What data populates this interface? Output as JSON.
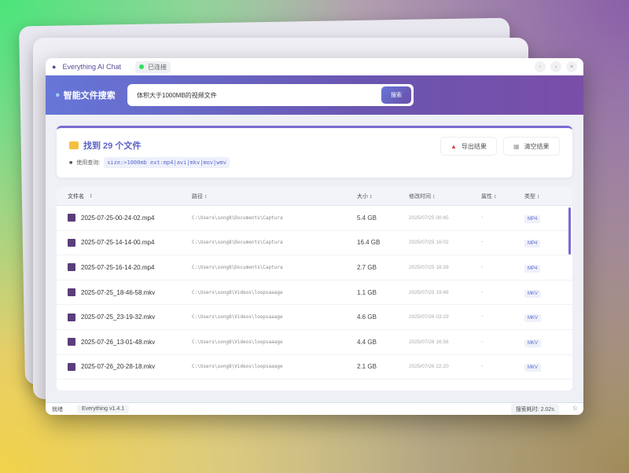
{
  "window": {
    "title": "Everything AI Chat",
    "connection": "已连接",
    "controls": [
      "-",
      "▫",
      "×"
    ]
  },
  "header": {
    "title": "智能文件搜索",
    "query": "体积大于1000MB的视频文件",
    "search_button": "搜索"
  },
  "summary": {
    "found": "找到 29 个文件",
    "query_label": "使用查询:",
    "query_code": "size:>1000mb ext:mp4|avi|mkv|mov|wmv",
    "export": "导出结果",
    "clear": "清空结果"
  },
  "table": {
    "headers": [
      "文件名",
      "路径",
      "大小",
      "修改时间",
      "属性",
      "类型"
    ],
    "rows": [
      {
        "name": "2025-07-25-00-24-02.mp4",
        "path": "C:\\Users\\song8\\Documents\\Captura",
        "size": "5.4 GB",
        "modified": "2025/07/25 00:45",
        "attr": "-",
        "type": "MP4"
      },
      {
        "name": "2025-07-25-14-14-00.mp4",
        "path": "C:\\Users\\song8\\Documents\\Captura",
        "size": "16.4 GB",
        "modified": "2025/07/25 16:02",
        "attr": "-",
        "type": "MP4"
      },
      {
        "name": "2025-07-25-16-14-20.mp4",
        "path": "C:\\Users\\song8\\Documents\\Captura",
        "size": "2.7 GB",
        "modified": "2025/07/25 18:39",
        "attr": "-",
        "type": "MP4"
      },
      {
        "name": "2025-07-25_18-46-58.mkv",
        "path": "C:\\Users\\song8\\Videos\\loopsaaage",
        "size": "1.1 GB",
        "modified": "2025/07/25 19:46",
        "attr": "-",
        "type": "MKV"
      },
      {
        "name": "2025-07-25_23-19-32.mkv",
        "path": "C:\\Users\\song8\\Videos\\loopsaaage",
        "size": "4.6 GB",
        "modified": "2025/07/26 03:29",
        "attr": "-",
        "type": "MKV"
      },
      {
        "name": "2025-07-26_13-01-48.mkv",
        "path": "C:\\Users\\song8\\Videos\\loopsaaage",
        "size": "4.4 GB",
        "modified": "2025/07/26 16:56",
        "attr": "-",
        "type": "MKV"
      },
      {
        "name": "2025-07-26_20-28-18.mkv",
        "path": "C:\\Users\\song8\\Videos\\loopsaaage",
        "size": "2.1 GB",
        "modified": "2025/07/26 22:20",
        "attr": "-",
        "type": "MKV"
      }
    ]
  },
  "status": {
    "state": "就绪",
    "version": "Everything v1.4.1",
    "elapsed": "搜索耗时: 2.02s",
    "icon": "©"
  }
}
